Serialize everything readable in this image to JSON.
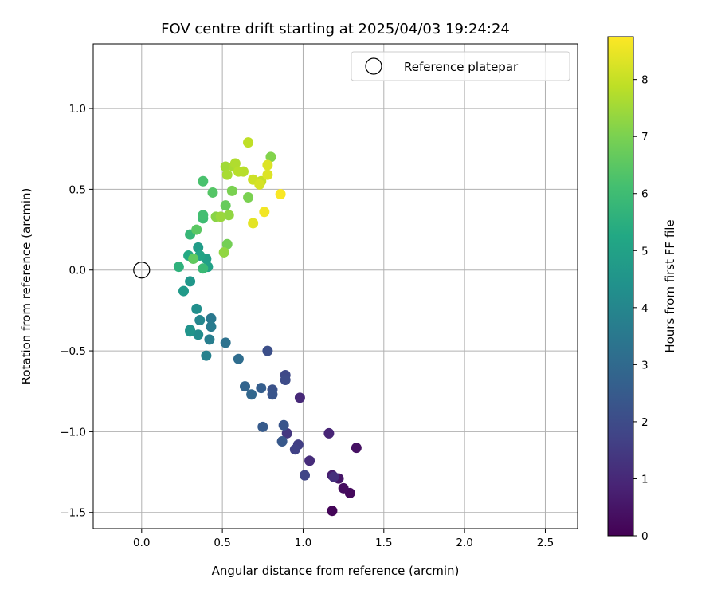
{
  "chart_data": {
    "type": "scatter",
    "title": "FOV centre drift starting at 2025/04/03 19:24:24",
    "xlabel": "Angular distance from reference (arcmin)",
    "ylabel": "Rotation from reference (arcmin)",
    "xlim": [
      -0.3,
      2.7
    ],
    "ylim": [
      -1.6,
      1.4
    ],
    "xticks": [
      "0.0",
      "0.5",
      "1.0",
      "1.5",
      "2.0",
      "2.5"
    ],
    "xtick_values": [
      0.0,
      0.5,
      1.0,
      1.5,
      2.0,
      2.5
    ],
    "yticks": [
      "1.0",
      "0.5",
      "0.0",
      "−0.5",
      "−1.0",
      "−1.5"
    ],
    "ytick_values": [
      1.0,
      0.5,
      0.0,
      -0.5,
      -1.0,
      -1.5
    ],
    "grid": true,
    "legend": {
      "placement": "top-right",
      "entries": [
        {
          "label": "Reference platepar",
          "marker": "open-circle"
        }
      ]
    },
    "reference_point": {
      "x": 0.0,
      "y": 0.0
    },
    "colorbar": {
      "label": "Hours from first FF file",
      "colormap": "viridis",
      "range": [
        0,
        8.75
      ],
      "ticks": [
        "0",
        "1",
        "2",
        "3",
        "4",
        "5",
        "6",
        "7",
        "8"
      ],
      "tick_values": [
        0,
        1,
        2,
        3,
        4,
        5,
        6,
        7,
        8
      ]
    },
    "points": [
      {
        "x": 1.18,
        "y": -1.49,
        "c": 0.1
      },
      {
        "x": 1.29,
        "y": -1.38,
        "c": 0.2
      },
      {
        "x": 1.25,
        "y": -1.35,
        "c": 0.3
      },
      {
        "x": 1.33,
        "y": -1.1,
        "c": 0.4
      },
      {
        "x": 1.22,
        "y": -1.29,
        "c": 0.5
      },
      {
        "x": 1.18,
        "y": -1.27,
        "c": 0.7
      },
      {
        "x": 1.16,
        "y": -1.01,
        "c": 0.9
      },
      {
        "x": 0.98,
        "y": -0.79,
        "c": 1.0
      },
      {
        "x": 1.04,
        "y": -1.18,
        "c": 1.1
      },
      {
        "x": 1.19,
        "y": -1.28,
        "c": 1.2
      },
      {
        "x": 0.9,
        "y": -1.01,
        "c": 1.4
      },
      {
        "x": 0.97,
        "y": -1.08,
        "c": 1.6
      },
      {
        "x": 0.95,
        "y": -1.11,
        "c": 1.7
      },
      {
        "x": 1.01,
        "y": -1.27,
        "c": 1.8
      },
      {
        "x": 0.89,
        "y": -0.65,
        "c": 1.9
      },
      {
        "x": 0.89,
        "y": -0.68,
        "c": 2.0
      },
      {
        "x": 0.78,
        "y": -0.5,
        "c": 2.1
      },
      {
        "x": 0.81,
        "y": -0.74,
        "c": 2.2
      },
      {
        "x": 0.81,
        "y": -0.77,
        "c": 2.3
      },
      {
        "x": 0.88,
        "y": -0.96,
        "c": 2.3
      },
      {
        "x": 0.87,
        "y": -1.06,
        "c": 2.4
      },
      {
        "x": 0.75,
        "y": -0.97,
        "c": 2.5
      },
      {
        "x": 0.74,
        "y": -0.73,
        "c": 2.6
      },
      {
        "x": 0.64,
        "y": -0.72,
        "c": 2.8
      },
      {
        "x": 0.68,
        "y": -0.77,
        "c": 2.9
      },
      {
        "x": 0.6,
        "y": -0.55,
        "c": 3.1
      },
      {
        "x": 0.52,
        "y": -0.45,
        "c": 3.3
      },
      {
        "x": 0.43,
        "y": -0.3,
        "c": 3.5
      },
      {
        "x": 0.43,
        "y": -0.35,
        "c": 3.6
      },
      {
        "x": 0.42,
        "y": -0.43,
        "c": 3.7
      },
      {
        "x": 0.4,
        "y": -0.53,
        "c": 3.8
      },
      {
        "x": 0.36,
        "y": -0.31,
        "c": 4.0
      },
      {
        "x": 0.35,
        "y": -0.4,
        "c": 4.2
      },
      {
        "x": 0.34,
        "y": -0.24,
        "c": 4.3
      },
      {
        "x": 0.3,
        "y": -0.37,
        "c": 4.4
      },
      {
        "x": 0.3,
        "y": -0.38,
        "c": 4.5
      },
      {
        "x": 0.3,
        "y": -0.07,
        "c": 4.6
      },
      {
        "x": 0.26,
        "y": -0.13,
        "c": 4.7
      },
      {
        "x": 0.35,
        "y": 0.14,
        "c": 4.8
      },
      {
        "x": 0.4,
        "y": 0.07,
        "c": 4.9
      },
      {
        "x": 0.41,
        "y": 0.02,
        "c": 5.0
      },
      {
        "x": 0.36,
        "y": 0.09,
        "c": 5.1
      },
      {
        "x": 0.29,
        "y": 0.09,
        "c": 5.3
      },
      {
        "x": 0.23,
        "y": 0.02,
        "c": 5.6
      },
      {
        "x": 0.3,
        "y": 0.22,
        "c": 5.8
      },
      {
        "x": 0.38,
        "y": 0.01,
        "c": 5.9
      },
      {
        "x": 0.38,
        "y": 0.32,
        "c": 6.0
      },
      {
        "x": 0.38,
        "y": 0.34,
        "c": 6.1
      },
      {
        "x": 0.38,
        "y": 0.55,
        "c": 6.2
      },
      {
        "x": 0.44,
        "y": 0.48,
        "c": 6.4
      },
      {
        "x": 0.34,
        "y": 0.25,
        "c": 6.5
      },
      {
        "x": 0.32,
        "y": 0.07,
        "c": 6.6
      },
      {
        "x": 0.52,
        "y": 0.4,
        "c": 6.7
      },
      {
        "x": 0.53,
        "y": 0.16,
        "c": 6.9
      },
      {
        "x": 0.56,
        "y": 0.49,
        "c": 7.0
      },
      {
        "x": 0.66,
        "y": 0.45,
        "c": 7.0
      },
      {
        "x": 0.8,
        "y": 0.7,
        "c": 7.1
      },
      {
        "x": 0.46,
        "y": 0.33,
        "c": 7.2
      },
      {
        "x": 0.51,
        "y": 0.11,
        "c": 7.3
      },
      {
        "x": 0.54,
        "y": 0.34,
        "c": 7.3
      },
      {
        "x": 0.49,
        "y": 0.33,
        "c": 7.4
      },
      {
        "x": 0.52,
        "y": 0.64,
        "c": 7.5
      },
      {
        "x": 0.53,
        "y": 0.59,
        "c": 7.6
      },
      {
        "x": 0.57,
        "y": 0.64,
        "c": 7.6
      },
      {
        "x": 0.58,
        "y": 0.66,
        "c": 7.7
      },
      {
        "x": 0.6,
        "y": 0.61,
        "c": 7.8
      },
      {
        "x": 0.63,
        "y": 0.61,
        "c": 7.8
      },
      {
        "x": 0.66,
        "y": 0.79,
        "c": 7.9
      },
      {
        "x": 0.74,
        "y": 0.55,
        "c": 8.0
      },
      {
        "x": 0.69,
        "y": 0.56,
        "c": 8.1
      },
      {
        "x": 0.73,
        "y": 0.53,
        "c": 8.2
      },
      {
        "x": 0.78,
        "y": 0.59,
        "c": 8.3
      },
      {
        "x": 0.78,
        "y": 0.65,
        "c": 8.3
      },
      {
        "x": 0.69,
        "y": 0.29,
        "c": 8.4
      },
      {
        "x": 0.76,
        "y": 0.36,
        "c": 8.6
      },
      {
        "x": 0.86,
        "y": 0.47,
        "c": 8.7
      }
    ]
  }
}
